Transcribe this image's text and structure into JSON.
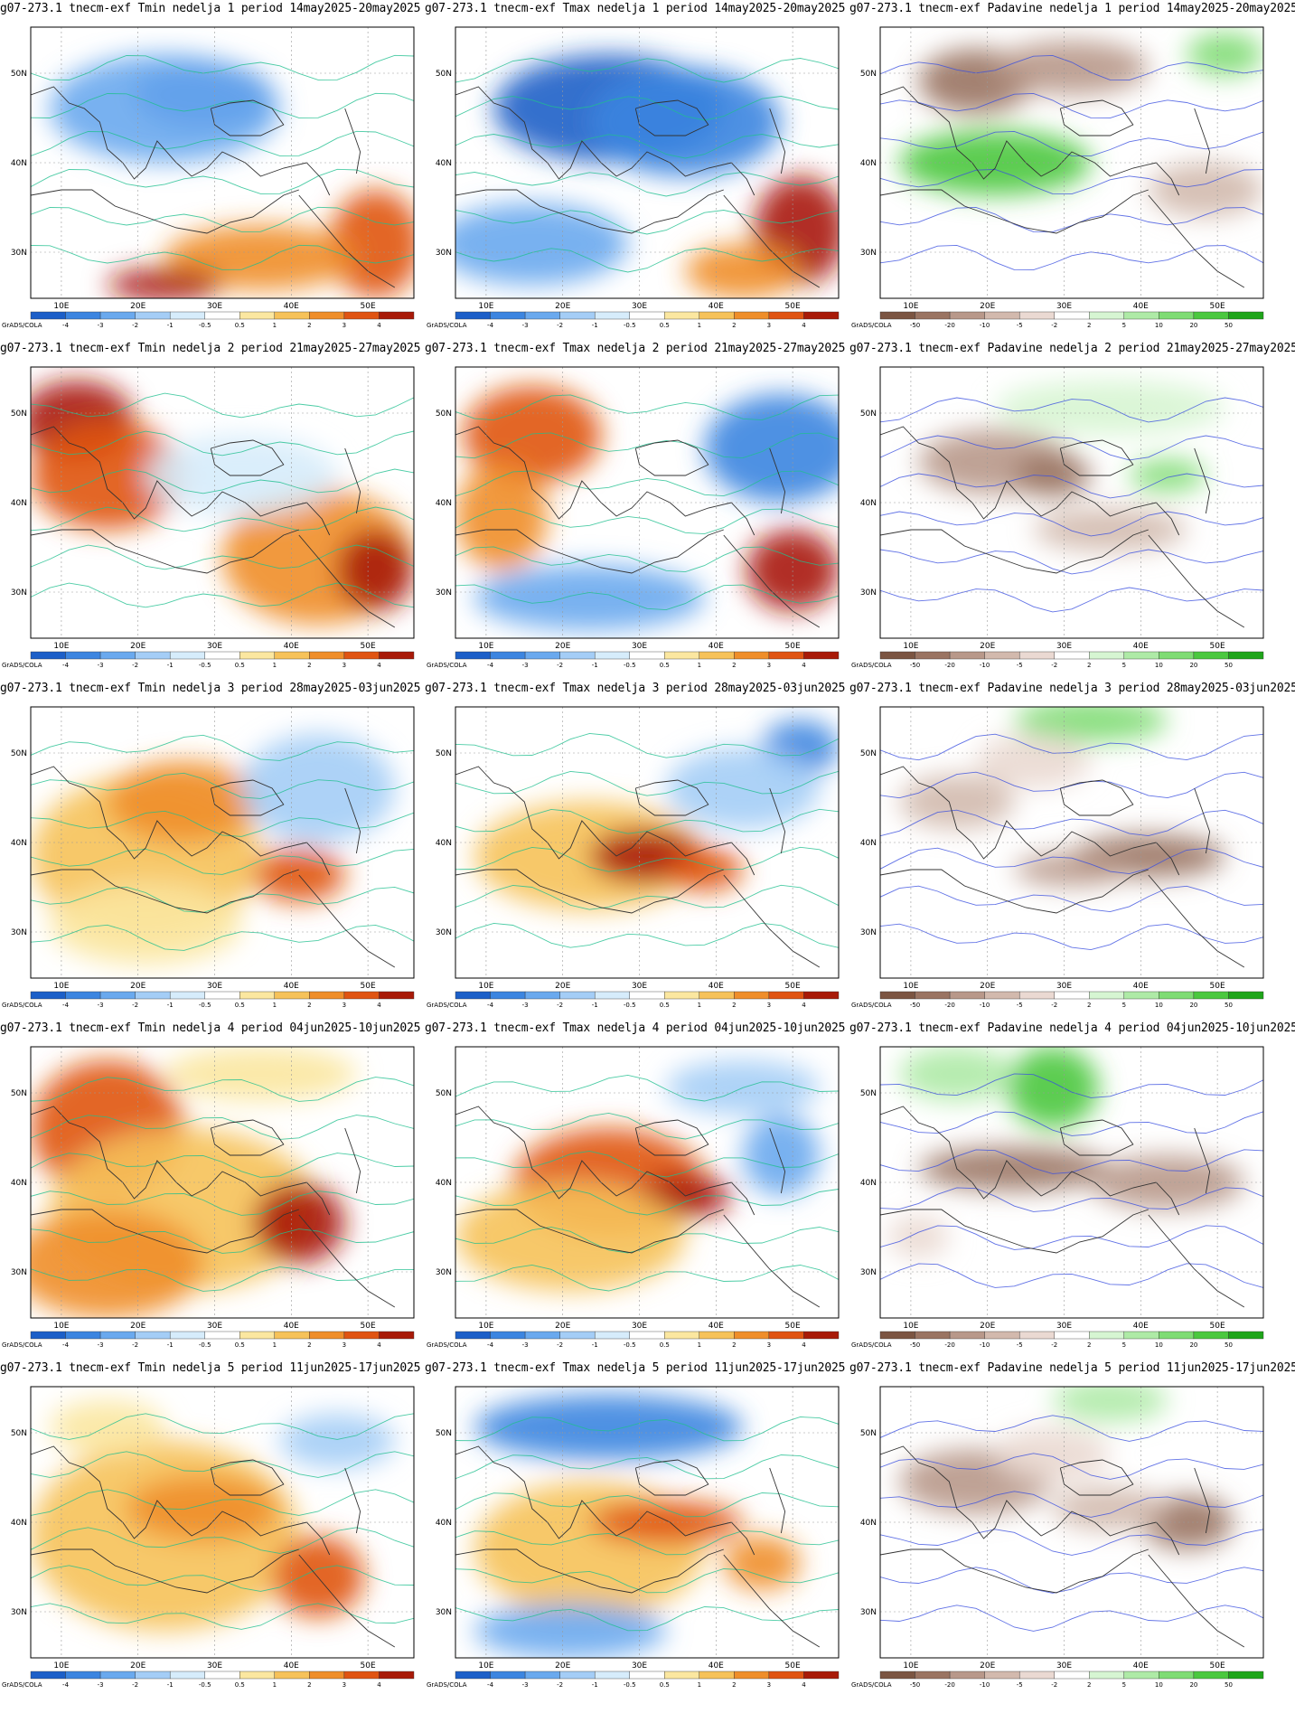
{
  "panel_titles": [
    "g07-273.1 tnecm-exf Tmin nedelja 1 period 14may2025-20may2025",
    "g07-273.1 tnecm-exf Tmax nedelja 1 period 14may2025-20may2025",
    "g07-273.1 tnecm-exf Padavine nedelja 1 period 14may2025-20may2025",
    "g07-273.1 tnecm-exf Tmin nedelja 2 period 21may2025-27may2025",
    "g07-273.1 tnecm-exf Tmax nedelja 2 period 21may2025-27may2025",
    "g07-273.1 tnecm-exf Padavine nedelja 2 period 21may2025-27may2025",
    "g07-273.1 tnecm-exf Tmin nedelja 3 period 28may2025-03jun2025",
    "g07-273.1 tnecm-exf Tmax nedelja 3 period 28may2025-03jun2025",
    "g07-273.1 tnecm-exf Padavine nedelja 3 period 28may2025-03jun2025",
    "g07-273.1 tnecm-exf Tmin nedelja 4 period 04jun2025-10jun2025",
    "g07-273.1 tnecm-exf Tmax nedelja 4 period 04jun2025-10jun2025",
    "g07-273.1 tnecm-exf Padavine nedelja 4 period 04jun2025-10jun2025",
    "g07-273.1 tnecm-exf Tmin nedelja 5 period 11jun2025-17jun2025",
    "g07-273.1 tnecm-exf Tmax nedelja 5 period 11jun2025-17jun2025",
    "g07-273.1 tnecm-exf Padavine nedelja 5 period 11jun2025-17jun2025"
  ],
  "lat_labels": [
    "50N",
    "40N",
    "30N"
  ],
  "lon_labels": [
    "10E",
    "20E",
    "30E",
    "40E",
    "50E"
  ],
  "credit": "GrADS/COLA",
  "temp_colorbar": {
    "labels": [
      "-4",
      "-3",
      "-2",
      "-1",
      "-0.5",
      "0.5",
      "1",
      "2",
      "3",
      "4"
    ],
    "colors": [
      "#1c5fc8",
      "#3c85e0",
      "#6aa9ee",
      "#a4cdf6",
      "#d6ecfb",
      "#ffffff",
      "#fbe7a0",
      "#f6c25a",
      "#ef8e2a",
      "#e05412",
      "#a81a08"
    ]
  },
  "precip_colorbar": {
    "labels": [
      "-50",
      "-20",
      "-10",
      "-5",
      "-2",
      "2",
      "5",
      "10",
      "20",
      "50"
    ],
    "colors": [
      "#7b5542",
      "#9a7462",
      "#b8988a",
      "#d2b9ad",
      "#ead9d2",
      "#ffffff",
      "#d6f5d2",
      "#aeeaa6",
      "#7fdc74",
      "#4bc83f",
      "#1fa51a"
    ]
  },
  "anomaly_fields": [
    {
      "type": "temp",
      "blobs": [
        [
          "#1c5fc8",
          0.45,
          0.25,
          0.18,
          0.12
        ],
        [
          "#6aa9ee",
          0.35,
          0.3,
          0.3,
          0.2
        ],
        [
          "#e05412",
          0.9,
          0.8,
          0.12,
          0.2
        ],
        [
          "#ef8e2a",
          0.6,
          0.85,
          0.25,
          0.12
        ],
        [
          "#a81a08",
          0.35,
          0.95,
          0.15,
          0.06
        ]
      ]
    },
    {
      "type": "temp",
      "blobs": [
        [
          "#1c5fc8",
          0.4,
          0.3,
          0.3,
          0.2
        ],
        [
          "#3c85e0",
          0.6,
          0.35,
          0.25,
          0.2
        ],
        [
          "#6aa9ee",
          0.2,
          0.8,
          0.25,
          0.15
        ],
        [
          "#a81a08",
          0.9,
          0.75,
          0.12,
          0.2
        ],
        [
          "#ef8e2a",
          0.75,
          0.9,
          0.15,
          0.1
        ]
      ]
    },
    {
      "type": "precip",
      "blobs": [
        [
          "#9a7462",
          0.25,
          0.2,
          0.15,
          0.12
        ],
        [
          "#b8988a",
          0.5,
          0.15,
          0.2,
          0.1
        ],
        [
          "#4bc83f",
          0.3,
          0.5,
          0.25,
          0.12
        ],
        [
          "#7fdc74",
          0.9,
          0.1,
          0.1,
          0.08
        ],
        [
          "#d2b9ad",
          0.85,
          0.6,
          0.15,
          0.1
        ]
      ]
    },
    {
      "type": "temp",
      "blobs": [
        [
          "#a81a08",
          0.12,
          0.2,
          0.15,
          0.15
        ],
        [
          "#e05412",
          0.2,
          0.4,
          0.2,
          0.2
        ],
        [
          "#ef8e2a",
          0.75,
          0.7,
          0.25,
          0.25
        ],
        [
          "#a81a08",
          0.9,
          0.75,
          0.1,
          0.15
        ],
        [
          "#d6ecfb",
          0.55,
          0.4,
          0.25,
          0.15
        ]
      ]
    },
    {
      "type": "temp",
      "blobs": [
        [
          "#e05412",
          0.2,
          0.25,
          0.18,
          0.18
        ],
        [
          "#ef8e2a",
          0.12,
          0.55,
          0.12,
          0.2
        ],
        [
          "#3c85e0",
          0.85,
          0.3,
          0.2,
          0.2
        ],
        [
          "#6aa9ee",
          0.35,
          0.85,
          0.3,
          0.12
        ],
        [
          "#a81a08",
          0.88,
          0.75,
          0.12,
          0.15
        ]
      ]
    },
    {
      "type": "precip",
      "blobs": [
        [
          "#b8988a",
          0.3,
          0.35,
          0.2,
          0.12
        ],
        [
          "#9a7462",
          0.45,
          0.4,
          0.1,
          0.08
        ],
        [
          "#7fdc74",
          0.75,
          0.4,
          0.1,
          0.06
        ],
        [
          "#d6f5d2",
          0.6,
          0.15,
          0.3,
          0.1
        ],
        [
          "#d2b9ad",
          0.6,
          0.6,
          0.2,
          0.08
        ]
      ]
    },
    {
      "type": "temp",
      "blobs": [
        [
          "#f6c25a",
          0.3,
          0.55,
          0.3,
          0.3
        ],
        [
          "#ef8e2a",
          0.4,
          0.35,
          0.2,
          0.15
        ],
        [
          "#e05412",
          0.7,
          0.62,
          0.12,
          0.1
        ],
        [
          "#a4cdf6",
          0.75,
          0.3,
          0.2,
          0.2
        ],
        [
          "#fbe7a0",
          0.3,
          0.8,
          0.25,
          0.15
        ]
      ]
    },
    {
      "type": "temp",
      "blobs": [
        [
          "#f6c25a",
          0.35,
          0.55,
          0.3,
          0.2
        ],
        [
          "#a81a08",
          0.5,
          0.55,
          0.15,
          0.1
        ],
        [
          "#e05412",
          0.65,
          0.6,
          0.1,
          0.08
        ],
        [
          "#3c85e0",
          0.9,
          0.15,
          0.1,
          0.1
        ],
        [
          "#a4cdf6",
          0.75,
          0.3,
          0.2,
          0.15
        ]
      ]
    },
    {
      "type": "precip",
      "blobs": [
        [
          "#d2b9ad",
          0.2,
          0.35,
          0.15,
          0.1
        ],
        [
          "#9a7462",
          0.7,
          0.55,
          0.2,
          0.08
        ],
        [
          "#7fdc74",
          0.55,
          0.05,
          0.2,
          0.08
        ],
        [
          "#b8988a",
          0.5,
          0.6,
          0.15,
          0.06
        ],
        [
          "#ead9d2",
          0.4,
          0.2,
          0.15,
          0.1
        ]
      ]
    },
    {
      "type": "temp",
      "blobs": [
        [
          "#e05412",
          0.2,
          0.3,
          0.2,
          0.25
        ],
        [
          "#f6c25a",
          0.4,
          0.6,
          0.35,
          0.3
        ],
        [
          "#a81a08",
          0.7,
          0.65,
          0.12,
          0.15
        ],
        [
          "#ef8e2a",
          0.2,
          0.8,
          0.25,
          0.2
        ],
        [
          "#fbe7a0",
          0.6,
          0.1,
          0.25,
          0.1
        ]
      ]
    },
    {
      "type": "temp",
      "blobs": [
        [
          "#e05412",
          0.4,
          0.5,
          0.25,
          0.2
        ],
        [
          "#a81a08",
          0.6,
          0.55,
          0.12,
          0.08
        ],
        [
          "#f6c25a",
          0.3,
          0.7,
          0.3,
          0.2
        ],
        [
          "#6aa9ee",
          0.85,
          0.4,
          0.1,
          0.15
        ],
        [
          "#a4cdf6",
          0.75,
          0.15,
          0.2,
          0.1
        ]
      ]
    },
    {
      "type": "precip",
      "blobs": [
        [
          "#9a7462",
          0.35,
          0.45,
          0.25,
          0.08
        ],
        [
          "#b8988a",
          0.75,
          0.5,
          0.2,
          0.1
        ],
        [
          "#4bc83f",
          0.45,
          0.15,
          0.12,
          0.15
        ],
        [
          "#aeeaa6",
          0.2,
          0.1,
          0.15,
          0.1
        ],
        [
          "#ead9d2",
          0.1,
          0.7,
          0.08,
          0.08
        ]
      ]
    },
    {
      "type": "temp",
      "blobs": [
        [
          "#f6c25a",
          0.35,
          0.55,
          0.35,
          0.35
        ],
        [
          "#e05412",
          0.75,
          0.7,
          0.12,
          0.15
        ],
        [
          "#ef8e2a",
          0.45,
          0.45,
          0.2,
          0.12
        ],
        [
          "#fbe7a0",
          0.2,
          0.15,
          0.15,
          0.1
        ],
        [
          "#a4cdf6",
          0.8,
          0.2,
          0.15,
          0.1
        ]
      ]
    },
    {
      "type": "temp",
      "blobs": [
        [
          "#3c85e0",
          0.4,
          0.15,
          0.35,
          0.12
        ],
        [
          "#f6c25a",
          0.35,
          0.6,
          0.3,
          0.25
        ],
        [
          "#e05412",
          0.55,
          0.5,
          0.2,
          0.08
        ],
        [
          "#ef8e2a",
          0.8,
          0.65,
          0.1,
          0.1
        ],
        [
          "#6aa9ee",
          0.3,
          0.9,
          0.25,
          0.1
        ]
      ]
    },
    {
      "type": "precip",
      "blobs": [
        [
          "#b8988a",
          0.25,
          0.35,
          0.2,
          0.12
        ],
        [
          "#9a7462",
          0.8,
          0.5,
          0.12,
          0.1
        ],
        [
          "#d2b9ad",
          0.6,
          0.45,
          0.15,
          0.08
        ],
        [
          "#aeeaa6",
          0.6,
          0.05,
          0.15,
          0.08
        ],
        [
          "#ead9d2",
          0.45,
          0.25,
          0.15,
          0.1
        ]
      ]
    }
  ]
}
